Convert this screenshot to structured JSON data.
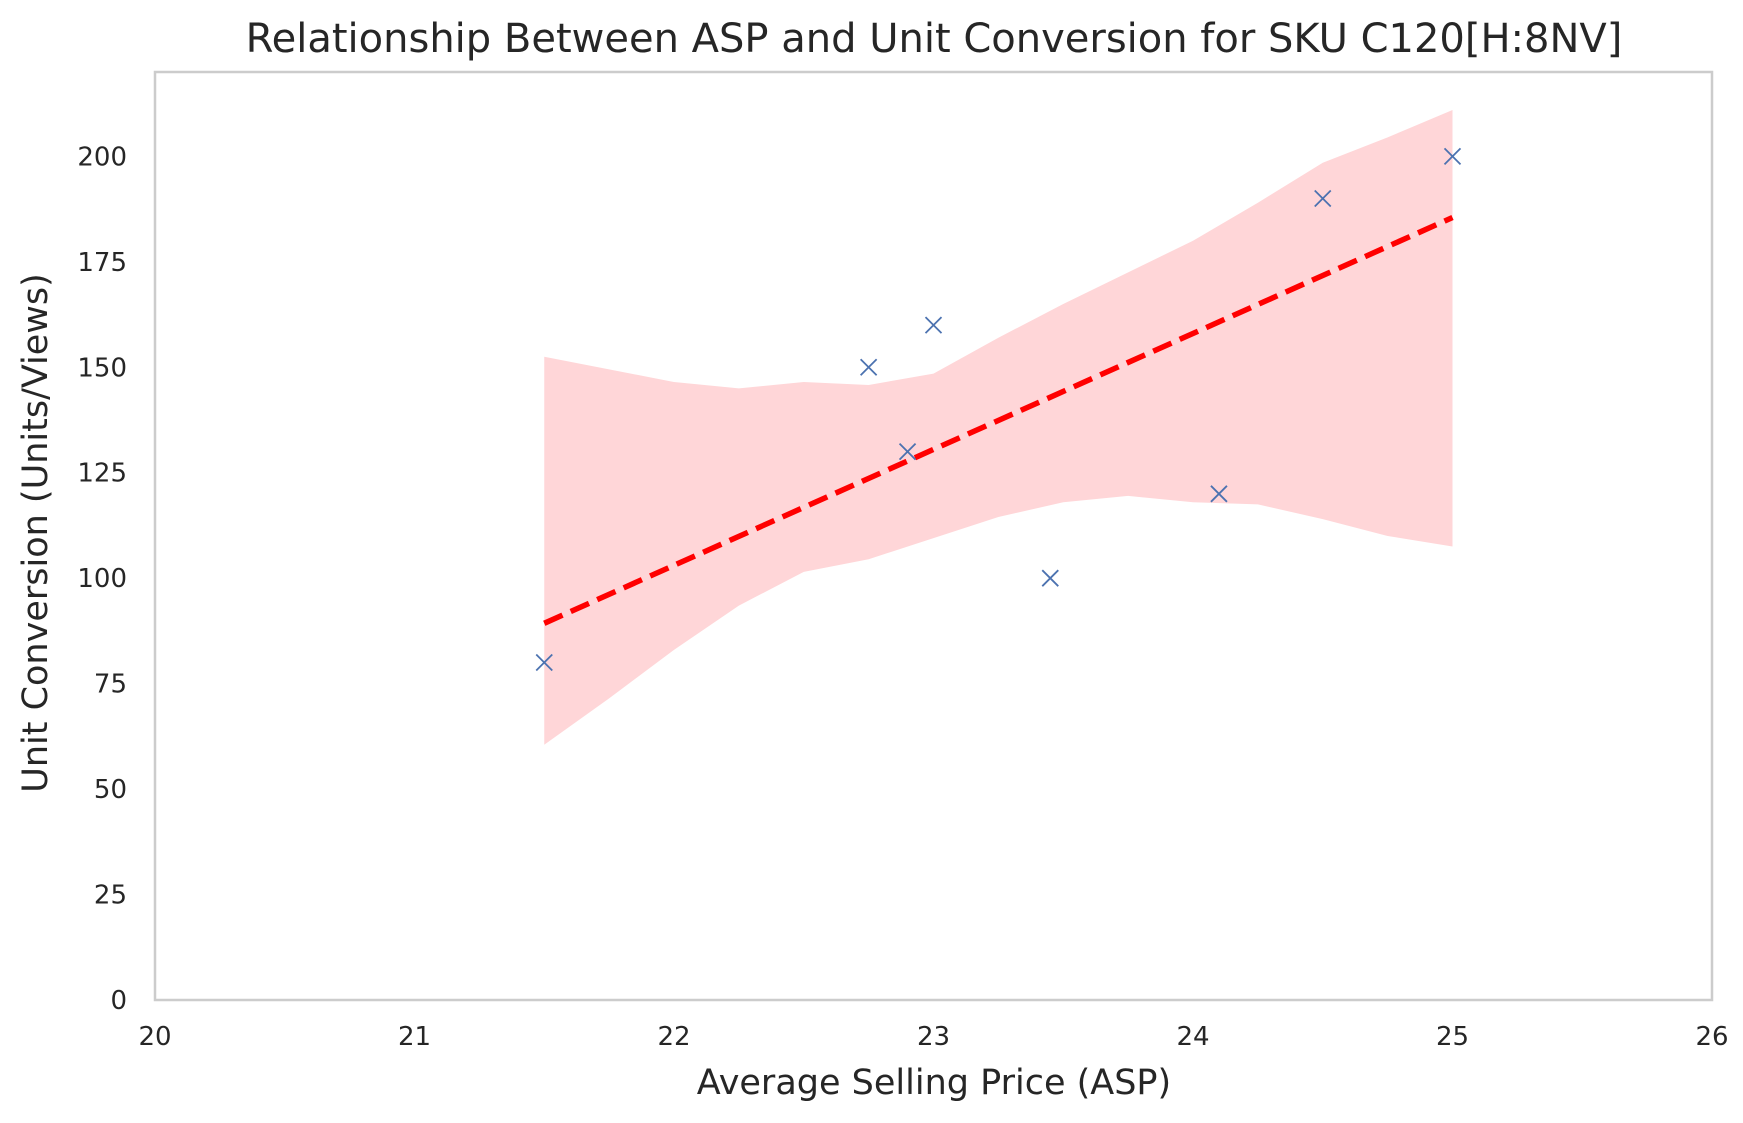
{
  "chart_data": {
    "type": "scatter",
    "title": "Relationship Between ASP and Unit Conversion for SKU C120[H:8NV]",
    "xlabel": "Average Selling Price (ASP)",
    "ylabel": "Unit Conversion (Units/Views)",
    "xlim": [
      20,
      26
    ],
    "ylim": [
      0,
      220
    ],
    "x_ticks": [
      20,
      21,
      22,
      23,
      24,
      25,
      26
    ],
    "y_ticks": [
      0,
      25,
      50,
      75,
      100,
      125,
      150,
      175,
      200
    ],
    "grid": false,
    "points": [
      {
        "x": 21.5,
        "y": 80
      },
      {
        "x": 22.75,
        "y": 150
      },
      {
        "x": 22.9,
        "y": 130
      },
      {
        "x": 23.0,
        "y": 160
      },
      {
        "x": 23.45,
        "y": 100
      },
      {
        "x": 24.1,
        "y": 120
      },
      {
        "x": 24.5,
        "y": 190
      },
      {
        "x": 25.0,
        "y": 200
      }
    ],
    "point_color": "#4c72b0",
    "point_marker": "x",
    "fit_line": {
      "x": [
        21.5,
        25.0
      ],
      "y": [
        89.3,
        185.5
      ],
      "color": "#ff0000",
      "style": "dashed"
    },
    "confidence_band": {
      "color": "#ffd6d8",
      "x": [
        21.5,
        21.75,
        22.0,
        22.25,
        22.5,
        22.75,
        23.0,
        23.25,
        23.5,
        23.75,
        24.0,
        24.25,
        24.5,
        24.75,
        25.0
      ],
      "upper": [
        152.5,
        149.5,
        146.5,
        145.0,
        146.5,
        145.8,
        148.5,
        157.0,
        165.0,
        172.5,
        180.0,
        189.0,
        198.5,
        204.5,
        211.0
      ],
      "lower": [
        60.5,
        71.5,
        83.0,
        93.5,
        101.5,
        104.5,
        109.5,
        114.5,
        118.0,
        119.5,
        118.0,
        117.5,
        114.0,
        110.0,
        107.5
      ]
    }
  }
}
